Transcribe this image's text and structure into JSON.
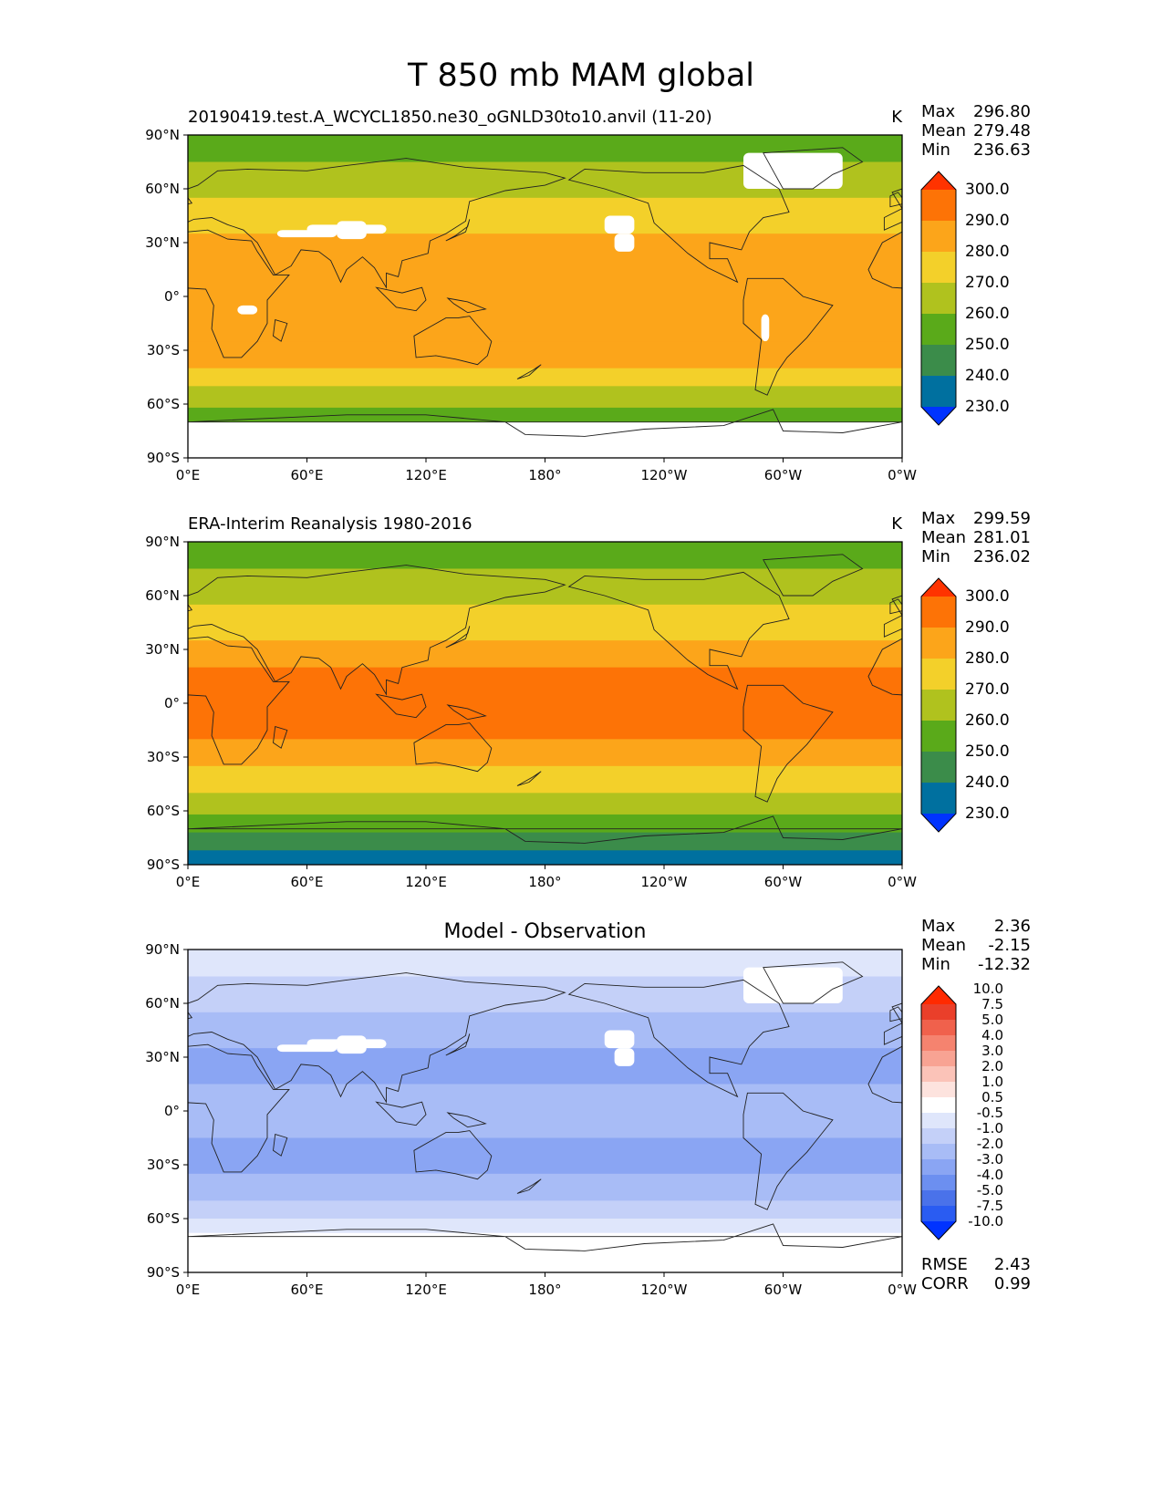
{
  "figure": {
    "title": "T 850 mb MAM global"
  },
  "colors": {
    "abs_levels": [
      "#0033ff",
      "#00709f",
      "#3b8c4a",
      "#5aaa1a",
      "#b0c21e",
      "#f3d02a",
      "#fca51a",
      "#fd7306",
      "#ff3300"
    ],
    "diff_levels": [
      "#0033ff",
      "#2a5cf2",
      "#4a72ea",
      "#6c8ff0",
      "#8aa5f3",
      "#a8bcf6",
      "#c4d0f8",
      "#dfe6fb",
      "#ffffff",
      "#fde3de",
      "#fbc3b8",
      "#f8a393",
      "#f5836f",
      "#f0614c",
      "#ea3f2a",
      "#ff2a00"
    ],
    "land_line": "#222222",
    "missing": "#ffffff"
  },
  "chart_data": [
    {
      "type": "contour_map",
      "panel": "test",
      "title_left": "20190419.test.A_WCYCL1850.ne30_oGNLD30to10.anvil (11-20)",
      "units": "K",
      "stats": {
        "max_label": "Max",
        "max": "296.80",
        "mean_label": "Mean",
        "mean": "279.48",
        "min_label": "Min",
        "min": "236.63"
      },
      "x_ticks": [
        "0°E",
        "60°E",
        "120°E",
        "180°",
        "120°W",
        "60°W",
        "0°W"
      ],
      "y_ticks": [
        "90°N",
        "60°N",
        "30°N",
        "0°",
        "30°S",
        "60°S",
        "90°S"
      ],
      "xlim": [
        0,
        360
      ],
      "ylim": [
        -90,
        90
      ],
      "colorbar": {
        "levels": [
          "230.0",
          "240.0",
          "250.0",
          "260.0",
          "270.0",
          "280.0",
          "290.0",
          "300.0"
        ]
      },
      "lat_bands": [
        {
          "lat": [
            75,
            90
          ],
          "value": 255
        },
        {
          "lat": [
            55,
            75
          ],
          "value": 262
        },
        {
          "lat": [
            35,
            55
          ],
          "value": 273
        },
        {
          "lat": [
            10,
            35
          ],
          "value": 283
        },
        {
          "lat": [
            -25,
            10
          ],
          "value": 285
        },
        {
          "lat": [
            -40,
            -25
          ],
          "value": 281
        },
        {
          "lat": [
            -50,
            -40
          ],
          "value": 273
        },
        {
          "lat": [
            -62,
            -50
          ],
          "value": 264
        },
        {
          "lat": [
            -70,
            -62
          ],
          "value": 255
        },
        {
          "lat": [
            -90,
            -70
          ],
          "value": null
        }
      ]
    },
    {
      "type": "contour_map",
      "panel": "reference",
      "title_left": "ERA-Interim Reanalysis 1980-2016",
      "units": "K",
      "stats": {
        "max_label": "Max",
        "max": "299.59",
        "mean_label": "Mean",
        "mean": "281.01",
        "min_label": "Min",
        "min": "236.02"
      },
      "x_ticks": [
        "0°E",
        "60°E",
        "120°E",
        "180°",
        "120°W",
        "60°W",
        "0°W"
      ],
      "y_ticks": [
        "90°N",
        "60°N",
        "30°N",
        "0°",
        "30°S",
        "60°S",
        "90°S"
      ],
      "xlim": [
        0,
        360
      ],
      "ylim": [
        -90,
        90
      ],
      "colorbar": {
        "levels": [
          "230.0",
          "240.0",
          "250.0",
          "260.0",
          "270.0",
          "280.0",
          "290.0",
          "300.0"
        ]
      },
      "lat_bands": [
        {
          "lat": [
            75,
            90
          ],
          "value": 255
        },
        {
          "lat": [
            55,
            75
          ],
          "value": 263
        },
        {
          "lat": [
            35,
            55
          ],
          "value": 275
        },
        {
          "lat": [
            20,
            35
          ],
          "value": 285
        },
        {
          "lat": [
            -20,
            20
          ],
          "value": 292
        },
        {
          "lat": [
            -35,
            -20
          ],
          "value": 285
        },
        {
          "lat": [
            -50,
            -35
          ],
          "value": 274
        },
        {
          "lat": [
            -62,
            -50
          ],
          "value": 264
        },
        {
          "lat": [
            -72,
            -62
          ],
          "value": 255
        },
        {
          "lat": [
            -82,
            -72
          ],
          "value": 245
        },
        {
          "lat": [
            -90,
            -82
          ],
          "value": 235
        }
      ]
    },
    {
      "type": "contour_map",
      "panel": "diff",
      "title_center": "Model - Observation",
      "stats": {
        "max_label": "Max",
        "max": "2.36",
        "mean_label": "Mean",
        "mean": "-2.15",
        "min_label": "Min",
        "min": "-12.32"
      },
      "metrics": {
        "rmse_label": "RMSE",
        "rmse": "2.43",
        "corr_label": "CORR",
        "corr": "0.99"
      },
      "x_ticks": [
        "0°E",
        "60°E",
        "120°E",
        "180°",
        "120°W",
        "60°W",
        "0°W"
      ],
      "y_ticks": [
        "90°N",
        "60°N",
        "30°N",
        "0°",
        "30°S",
        "60°S",
        "90°S"
      ],
      "xlim": [
        0,
        360
      ],
      "ylim": [
        -90,
        90
      ],
      "colorbar": {
        "levels": [
          "-10.0",
          "-7.5",
          "-5.0",
          "-4.0",
          "-3.0",
          "-2.0",
          "-1.0",
          "-0.5",
          "0.5",
          "1.0",
          "2.0",
          "3.0",
          "4.0",
          "5.0",
          "7.5",
          "10.0"
        ]
      },
      "lat_bands": [
        {
          "lat": [
            75,
            90
          ],
          "value": -0.8
        },
        {
          "lat": [
            55,
            75
          ],
          "value": -1.5
        },
        {
          "lat": [
            35,
            55
          ],
          "value": -2.5
        },
        {
          "lat": [
            15,
            35
          ],
          "value": -3.2
        },
        {
          "lat": [
            -15,
            15
          ],
          "value": -2.2
        },
        {
          "lat": [
            -35,
            -15
          ],
          "value": -3.3
        },
        {
          "lat": [
            -50,
            -35
          ],
          "value": -2.6
        },
        {
          "lat": [
            -60,
            -50
          ],
          "value": -1.5
        },
        {
          "lat": [
            -68,
            -60
          ],
          "value": -0.7
        },
        {
          "lat": [
            -72,
            -68
          ],
          "value": -0.2
        },
        {
          "lat": [
            -90,
            -72
          ],
          "value": null
        }
      ]
    }
  ]
}
